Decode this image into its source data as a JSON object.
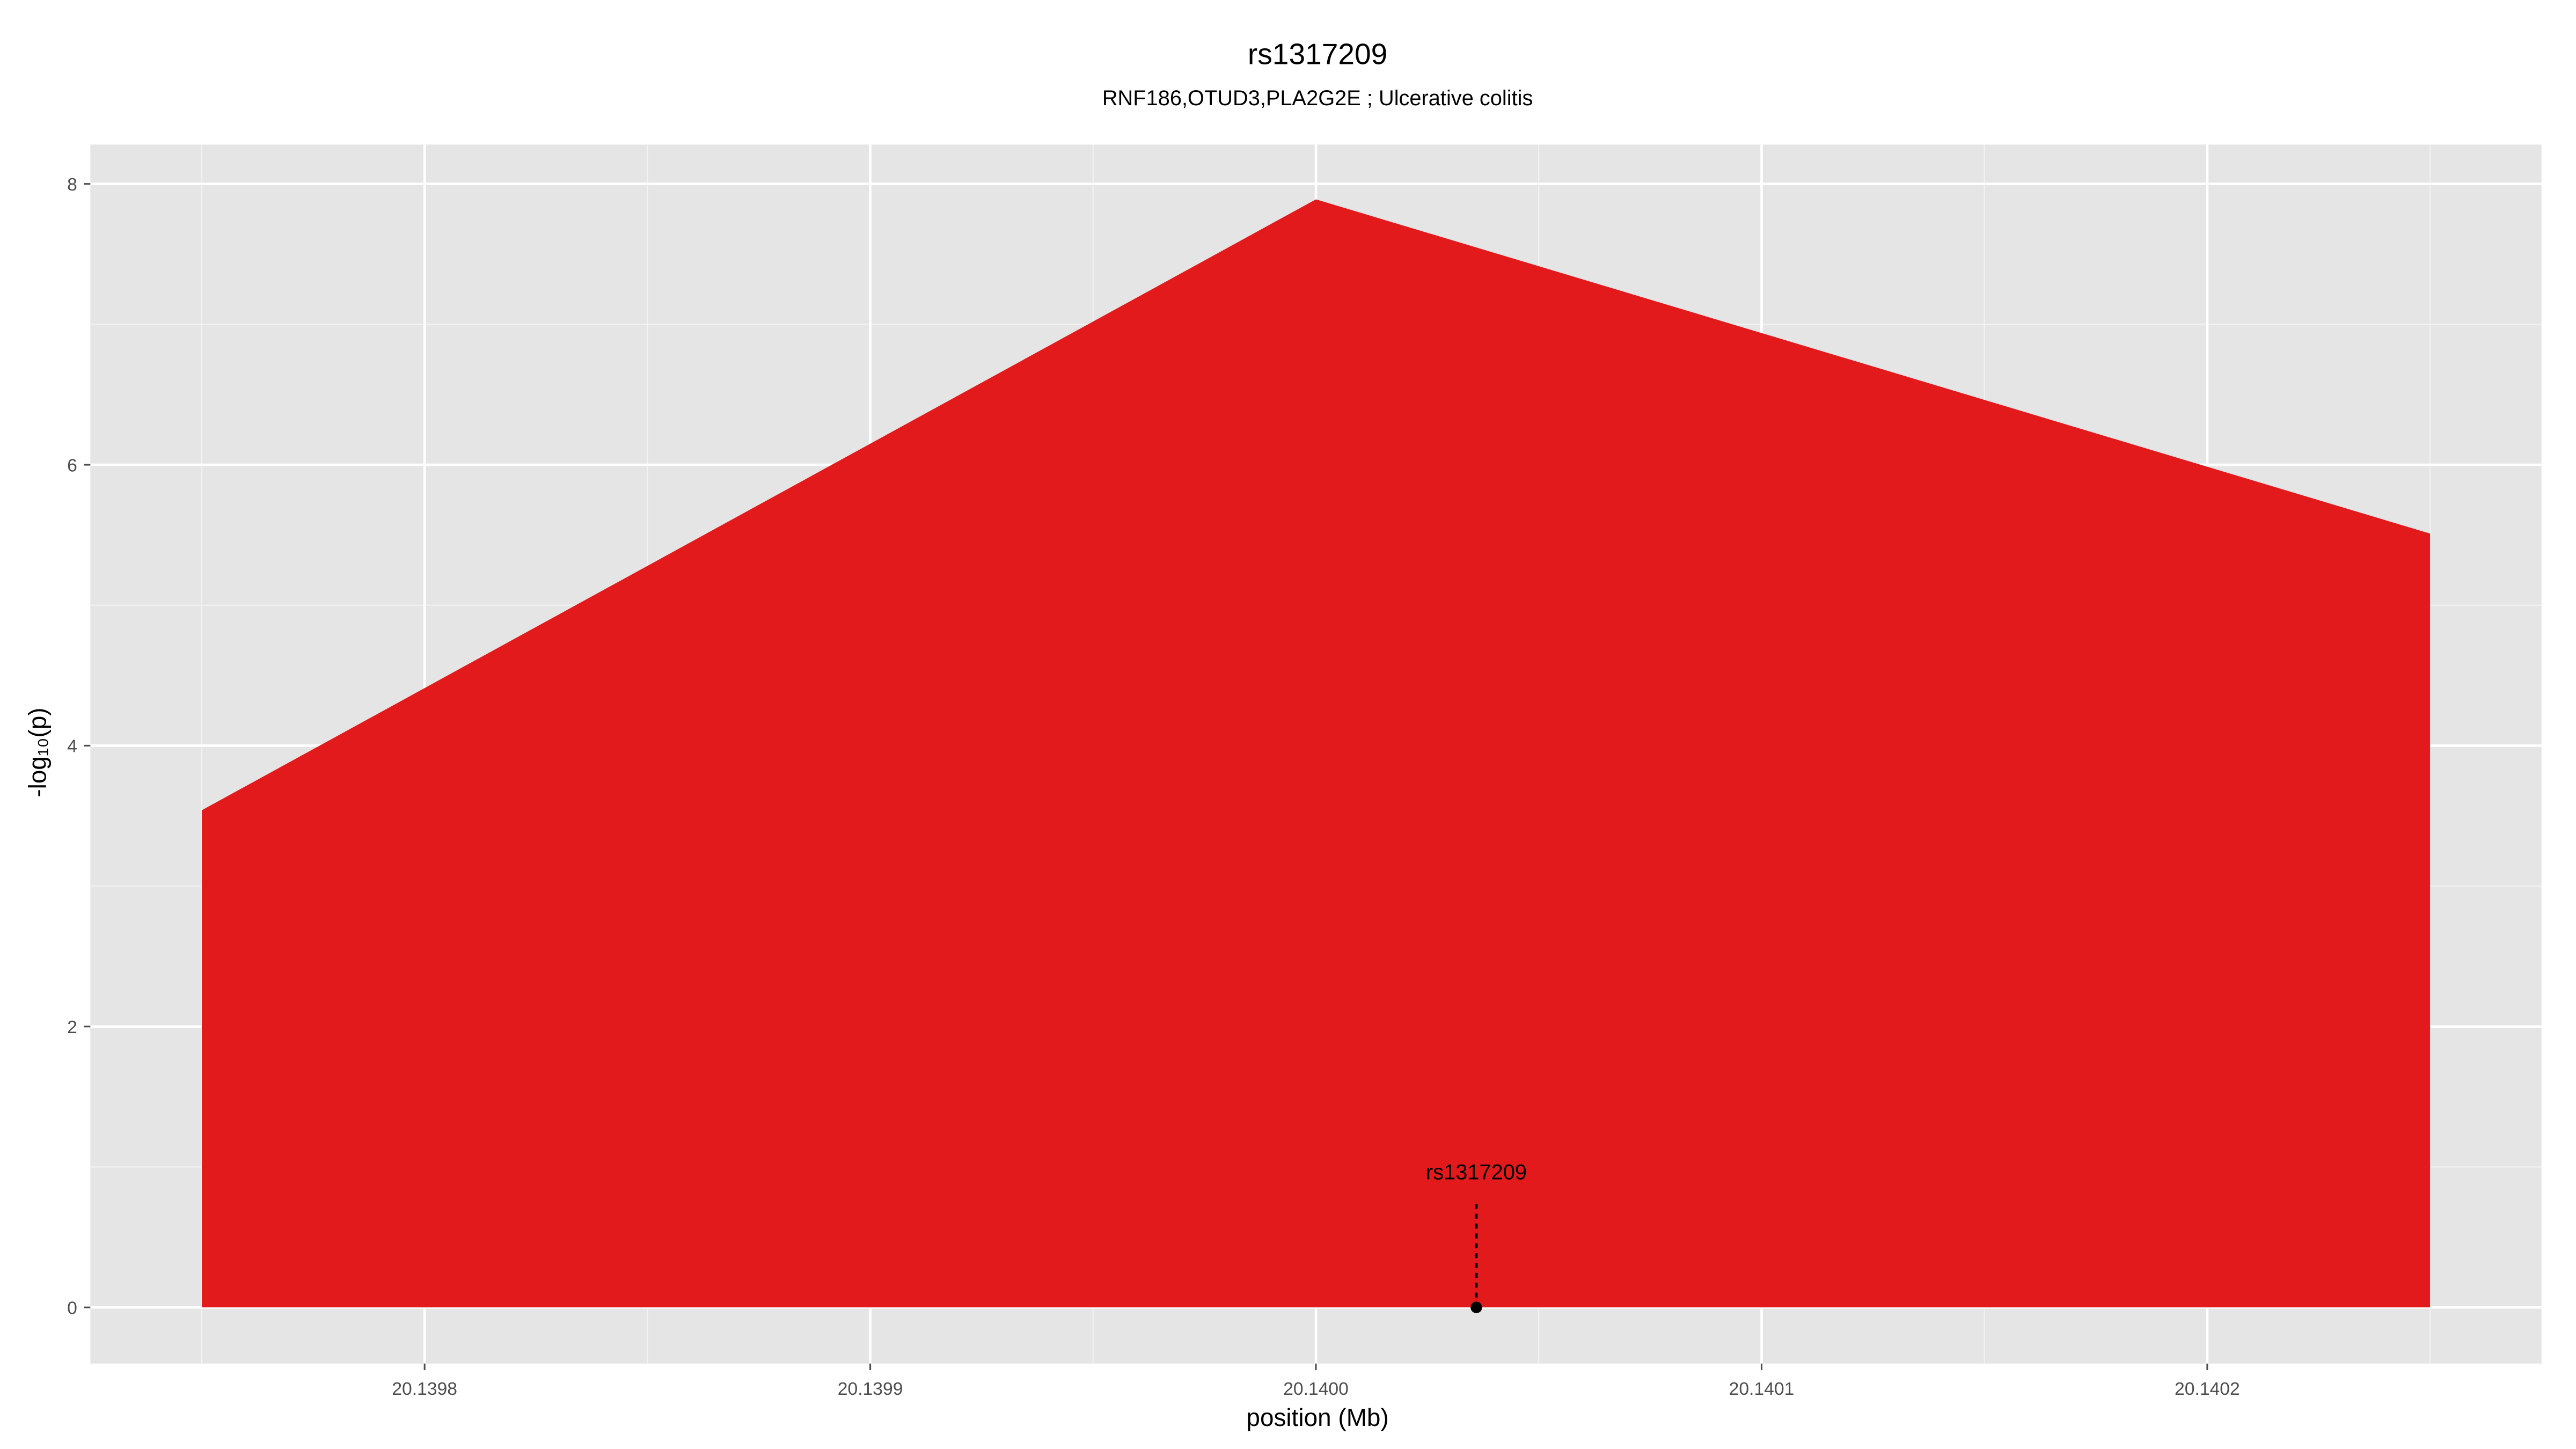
{
  "chart_data": {
    "type": "area",
    "title": "rs1317209",
    "subtitle": "RNF186,OTUD3,PLA2G2E ; Ulcerative colitis",
    "xlabel": "position (Mb)",
    "ylabel": "-log₁₀(p)",
    "x": [
      20.13975,
      20.14,
      20.14025
    ],
    "values": [
      3.54,
      7.89,
      5.51
    ],
    "color": "#e31a1c",
    "xlim": [
      20.139725,
      20.140275
    ],
    "ylim": [
      -0.4,
      8.28
    ],
    "xticks": [
      20.1398,
      20.1399,
      {
        "value": 20.14,
        "label": "20.1400"
      },
      20.1401,
      20.1402
    ],
    "yticks": [
      0,
      2,
      4,
      6,
      8
    ],
    "grid": true,
    "annotations": [
      {
        "text": "rs1317209",
        "x": 20.140036,
        "y": 0
      }
    ]
  }
}
